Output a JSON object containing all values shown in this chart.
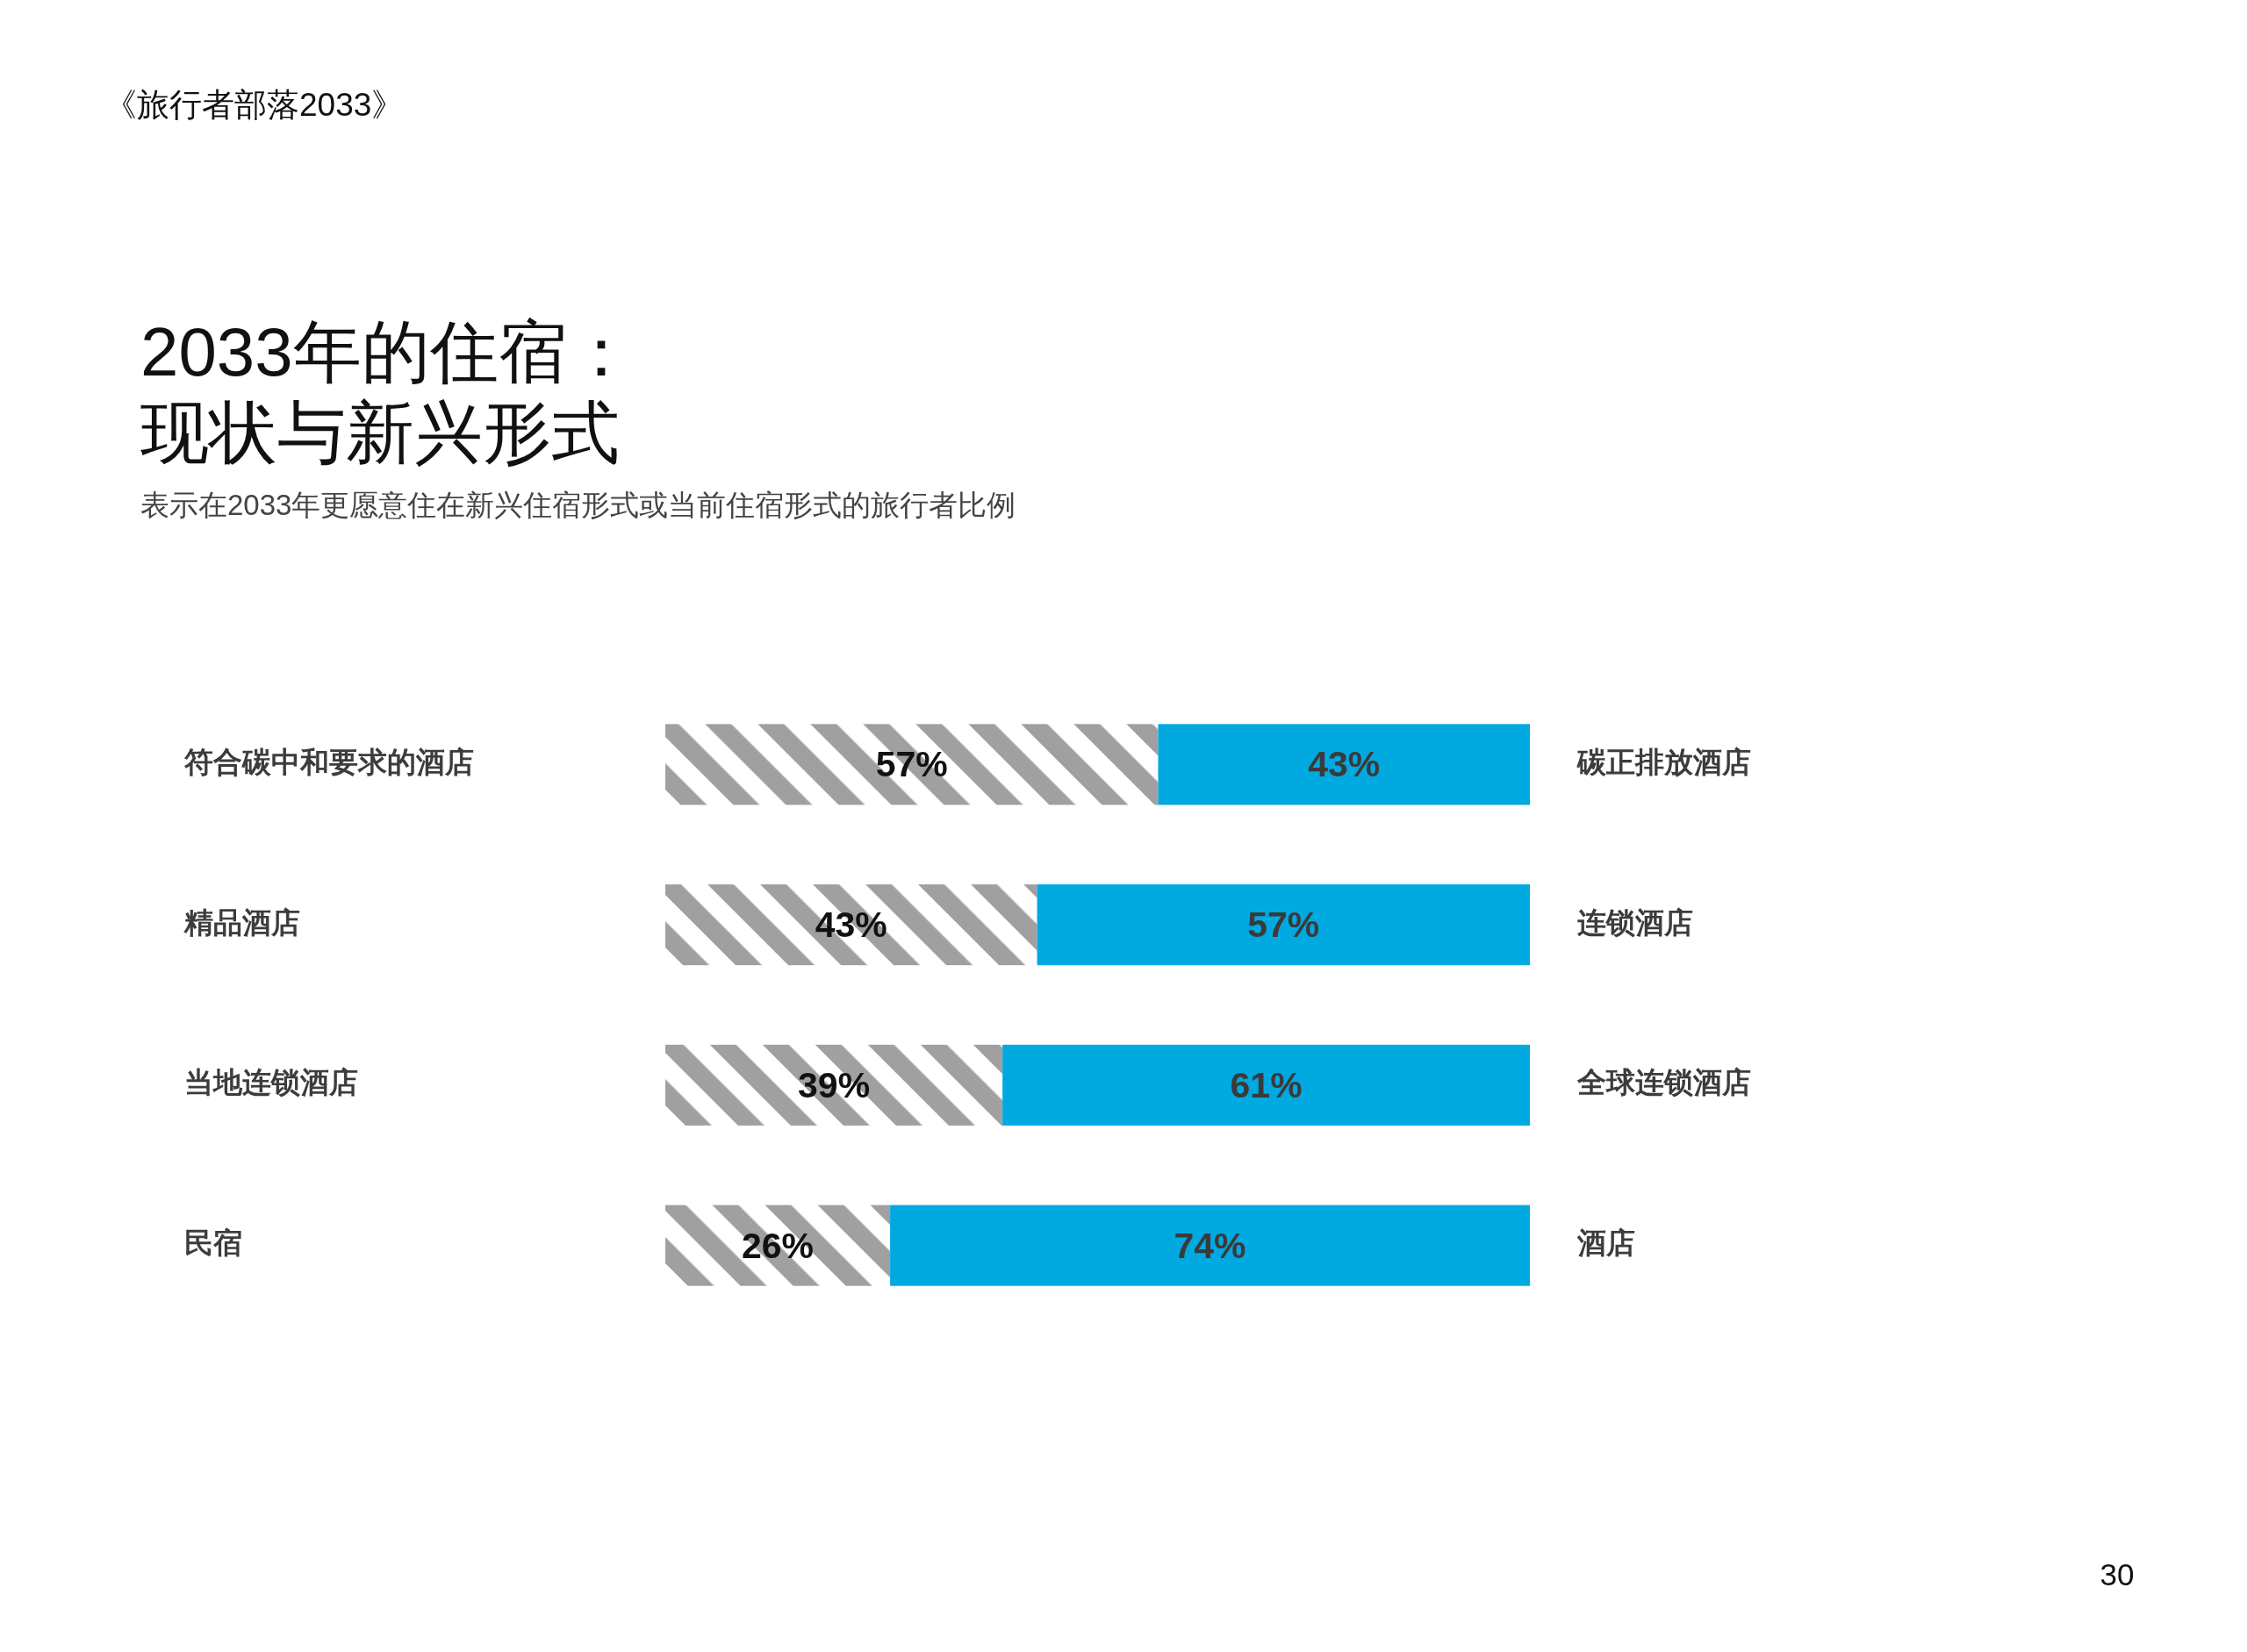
{
  "chart_data": {
    "type": "bar",
    "orientation": "horizontal",
    "stacked": true,
    "title": "2033年的住宿：现状与新兴形式",
    "subtitle": "表示在2033年更愿意住在新兴住宿形式或当前住宿形式的旅行者比例",
    "categories": [
      "符合碳中和要求的酒店",
      "精品酒店",
      "当地连锁酒店",
      "民宿"
    ],
    "y2_categories": [
      "碳正排放酒店",
      "连锁酒店",
      "全球连锁酒店",
      "酒店"
    ],
    "xlim": [
      0,
      100
    ],
    "tick_labels": "y",
    "series": [
      {
        "color": "#a0a0a0",
        "values": [
          57,
          43,
          39,
          26
        ],
        "value_labels": [
          "57%",
          "43%",
          "39%",
          "26%"
        ]
      },
      {
        "color": "#00a9e0",
        "values": [
          43,
          57,
          61,
          74
        ],
        "value_labels": [
          "43%",
          "57%",
          "61%",
          "74%"
        ]
      }
    ],
    "annotations": [
      "《旅行者部落2033》",
      "30"
    ]
  }
}
